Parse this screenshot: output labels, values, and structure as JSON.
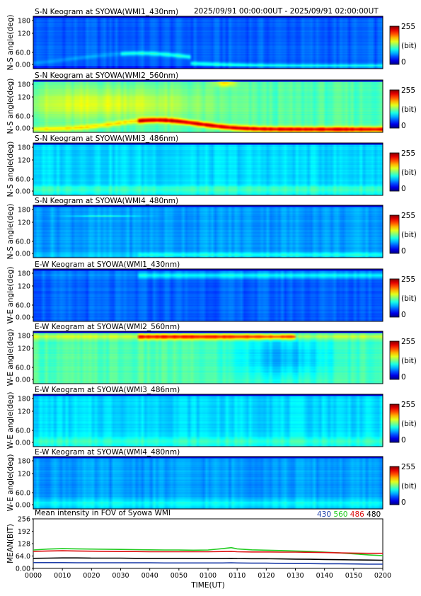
{
  "time_range_text": "2025/09/91 00:00:00UT - 2025/09/91 02:00:00UT",
  "x_axis": {
    "label": "TIME(UT)",
    "ticks": [
      "0000",
      "0010",
      "0020",
      "0030",
      "0040",
      "0050",
      "0100",
      "0110",
      "0120",
      "0130",
      "0140",
      "0150",
      "0200"
    ]
  },
  "colorbar": {
    "max_label": "255",
    "unit_label": "(bit)",
    "min_label": "0"
  },
  "panels": [
    {
      "title": "S-N Keogram at SYOWA(WMI1_430nm)",
      "ylabel": "N-S angle(deg)",
      "yticks": [
        "180",
        "120",
        "60.0",
        "0.00"
      ],
      "level": 0.22,
      "feature": "low_band_430"
    },
    {
      "title": "S-N Keogram at SYOWA(WMI2_560nm)",
      "ylabel": "N-S angle(deg)",
      "yticks": [
        "180",
        "120",
        "60.0",
        "0.00"
      ],
      "level": 0.45,
      "feature": "arc_560"
    },
    {
      "title": "S-N Keogram at SYOWA(WMI3_486nm)",
      "ylabel": "N-S angle(deg)",
      "yticks": [
        "180",
        "120",
        "60.0",
        "0.00"
      ],
      "level": 0.34,
      "feature": "flat"
    },
    {
      "title": "S-N Keogram at SYOWA(WMI4_480nm)",
      "ylabel": "N-S angle(deg)",
      "yticks": [
        "180",
        "120",
        "60.0",
        "0.00"
      ],
      "level": 0.28,
      "feature": "low_band_480"
    },
    {
      "title": "E-W Keogram at SYOWA(WMI1_430nm)",
      "ylabel": "W-E angle(deg)",
      "yticks": [
        "180",
        "120",
        "60.0",
        "0.00"
      ],
      "level": 0.22,
      "feature": "top_band_430"
    },
    {
      "title": "E-W Keogram at SYOWA(WMI2_560nm)",
      "ylabel": "W-E angle(deg)",
      "yticks": [
        "180",
        "120",
        "60.0",
        "0.00"
      ],
      "level": 0.45,
      "feature": "top_arc_560"
    },
    {
      "title": "E-W Keogram at SYOWA(WMI3_486nm)",
      "ylabel": "W-E angle(deg)",
      "yticks": [
        "180",
        "120",
        "60.0",
        "0.00"
      ],
      "level": 0.34,
      "feature": "flat"
    },
    {
      "title": "E-W Keogram at SYOWA(WMI4_480nm)",
      "ylabel": "W-E angle(deg)",
      "yticks": [
        "180",
        "120",
        "60.0",
        "0.00"
      ],
      "level": 0.28,
      "feature": "flat"
    }
  ],
  "chart_data": {
    "type": "line",
    "title": "Mean intensity in FOV of Syowa WMI",
    "xlabel": "TIME(UT)",
    "ylabel": "MEAN(BIT)",
    "yticks": [
      "256",
      "192",
      "128",
      "64.0",
      "0.00"
    ],
    "ylim": [
      0,
      256
    ],
    "xlim": [
      0,
      120
    ],
    "x": [
      0,
      5,
      10,
      15,
      20,
      25,
      30,
      35,
      40,
      45,
      50,
      55,
      60,
      65,
      68,
      70,
      75,
      80,
      85,
      90,
      95,
      100,
      105,
      110,
      115,
      120
    ],
    "series": [
      {
        "name": "430",
        "color": "#1f3fa8",
        "values": [
          30,
          30,
          30,
          29,
          29,
          29,
          29,
          29,
          29,
          28,
          28,
          28,
          28,
          28,
          29,
          28,
          27,
          27,
          26,
          25,
          25,
          24,
          24,
          23,
          22,
          22
        ]
      },
      {
        "name": "560",
        "color": "#22cc22",
        "values": [
          95,
          100,
          102,
          101,
          100,
          99,
          98,
          97,
          96,
          95,
          95,
          94,
          95,
          102,
          107,
          101,
          96,
          94,
          92,
          90,
          88,
          84,
          80,
          75,
          70,
          66
        ]
      },
      {
        "name": "486",
        "color": "#dd1111",
        "values": [
          88,
          90,
          91,
          90,
          89,
          88,
          87,
          87,
          86,
          86,
          86,
          86,
          86,
          87,
          88,
          86,
          85,
          85,
          84,
          84,
          83,
          82,
          80,
          79,
          78,
          78
        ]
      },
      {
        "name": "480",
        "color": "#000000",
        "values": [
          52,
          53,
          54,
          54,
          53,
          53,
          53,
          52,
          52,
          52,
          52,
          51,
          51,
          51,
          52,
          51,
          50,
          50,
          49,
          48,
          47,
          46,
          45,
          44,
          43,
          42
        ]
      }
    ]
  }
}
